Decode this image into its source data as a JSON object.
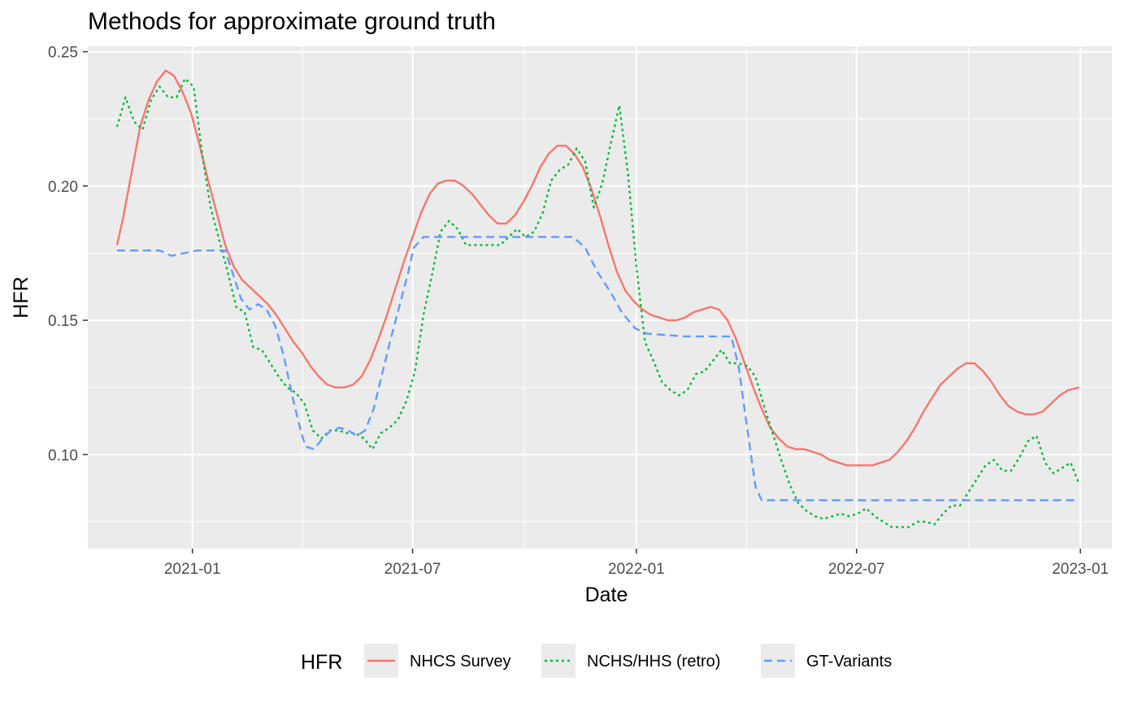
{
  "chart_data": {
    "type": "line",
    "title": "Methods for approximate ground truth",
    "xlabel": "Date",
    "ylabel": "HFR",
    "x_type": "date",
    "xlim": [
      "2020-10-07",
      "2023-01-27"
    ],
    "ylim": [
      0.065,
      0.252
    ],
    "x_ticks": [
      "2021-01-01",
      "2021-07-01",
      "2022-01-01",
      "2022-07-01",
      "2023-01-01"
    ],
    "x_tick_labels": [
      "2021-01",
      "2021-07",
      "2022-01",
      "2022-07",
      "2023-01"
    ],
    "y_ticks": [
      0.1,
      0.15,
      0.2,
      0.25
    ],
    "y_tick_labels": [
      "0.10",
      "0.15",
      "0.20",
      "0.25"
    ],
    "grid": true,
    "legend": {
      "title": "HFR",
      "position": "bottom"
    },
    "series": [
      {
        "name": "NHCS Survey",
        "color": "#F8766D",
        "dash": "solid",
        "points": [
          [
            "2020-10-31",
            0.178
          ],
          [
            "2020-11-05",
            0.188
          ],
          [
            "2020-11-12",
            0.205
          ],
          [
            "2020-11-19",
            0.222
          ],
          [
            "2020-11-26",
            0.232
          ],
          [
            "2020-12-03",
            0.239
          ],
          [
            "2020-12-10",
            0.243
          ],
          [
            "2020-12-17",
            0.241
          ],
          [
            "2020-12-24",
            0.235
          ],
          [
            "2020-12-31",
            0.227
          ],
          [
            "2021-01-07",
            0.215
          ],
          [
            "2021-01-14",
            0.202
          ],
          [
            "2021-01-21",
            0.19
          ],
          [
            "2021-01-28",
            0.178
          ],
          [
            "2021-02-04",
            0.17
          ],
          [
            "2021-02-11",
            0.165
          ],
          [
            "2021-02-18",
            0.162
          ],
          [
            "2021-02-25",
            0.159
          ],
          [
            "2021-03-04",
            0.156
          ],
          [
            "2021-03-11",
            0.152
          ],
          [
            "2021-03-18",
            0.147
          ],
          [
            "2021-03-25",
            0.142
          ],
          [
            "2021-04-01",
            0.138
          ],
          [
            "2021-04-08",
            0.133
          ],
          [
            "2021-04-15",
            0.129
          ],
          [
            "2021-04-22",
            0.126
          ],
          [
            "2021-04-29",
            0.125
          ],
          [
            "2021-05-06",
            0.125
          ],
          [
            "2021-05-13",
            0.126
          ],
          [
            "2021-05-20",
            0.129
          ],
          [
            "2021-05-27",
            0.135
          ],
          [
            "2021-06-03",
            0.143
          ],
          [
            "2021-06-10",
            0.152
          ],
          [
            "2021-06-17",
            0.162
          ],
          [
            "2021-06-24",
            0.172
          ],
          [
            "2021-07-01",
            0.181
          ],
          [
            "2021-07-08",
            0.19
          ],
          [
            "2021-07-15",
            0.197
          ],
          [
            "2021-07-22",
            0.201
          ],
          [
            "2021-07-29",
            0.202
          ],
          [
            "2021-08-05",
            0.202
          ],
          [
            "2021-08-12",
            0.2
          ],
          [
            "2021-08-19",
            0.197
          ],
          [
            "2021-08-26",
            0.193
          ],
          [
            "2021-09-02",
            0.189
          ],
          [
            "2021-09-09",
            0.186
          ],
          [
            "2021-09-16",
            0.186
          ],
          [
            "2021-09-23",
            0.189
          ],
          [
            "2021-09-30",
            0.194
          ],
          [
            "2021-10-07",
            0.2
          ],
          [
            "2021-10-14",
            0.207
          ],
          [
            "2021-10-21",
            0.212
          ],
          [
            "2021-10-28",
            0.215
          ],
          [
            "2021-11-04",
            0.215
          ],
          [
            "2021-11-11",
            0.212
          ],
          [
            "2021-11-18",
            0.207
          ],
          [
            "2021-11-25",
            0.199
          ],
          [
            "2021-12-02",
            0.189
          ],
          [
            "2021-12-09",
            0.178
          ],
          [
            "2021-12-16",
            0.168
          ],
          [
            "2021-12-23",
            0.161
          ],
          [
            "2021-12-30",
            0.157
          ],
          [
            "2022-01-06",
            0.154
          ],
          [
            "2022-01-13",
            0.152
          ],
          [
            "2022-01-20",
            0.151
          ],
          [
            "2022-01-27",
            0.15
          ],
          [
            "2022-02-03",
            0.15
          ],
          [
            "2022-02-10",
            0.151
          ],
          [
            "2022-02-17",
            0.153
          ],
          [
            "2022-02-24",
            0.154
          ],
          [
            "2022-03-03",
            0.155
          ],
          [
            "2022-03-10",
            0.154
          ],
          [
            "2022-03-17",
            0.15
          ],
          [
            "2022-03-24",
            0.143
          ],
          [
            "2022-03-31",
            0.134
          ],
          [
            "2022-04-07",
            0.125
          ],
          [
            "2022-04-14",
            0.117
          ],
          [
            "2022-04-21",
            0.11
          ],
          [
            "2022-04-28",
            0.106
          ],
          [
            "2022-05-05",
            0.103
          ],
          [
            "2022-05-12",
            0.102
          ],
          [
            "2022-05-19",
            0.102
          ],
          [
            "2022-05-26",
            0.101
          ],
          [
            "2022-06-02",
            0.1
          ],
          [
            "2022-06-09",
            0.098
          ],
          [
            "2022-06-16",
            0.097
          ],
          [
            "2022-06-23",
            0.096
          ],
          [
            "2022-06-30",
            0.096
          ],
          [
            "2022-07-07",
            0.096
          ],
          [
            "2022-07-14",
            0.096
          ],
          [
            "2022-07-21",
            0.097
          ],
          [
            "2022-07-28",
            0.098
          ],
          [
            "2022-08-04",
            0.101
          ],
          [
            "2022-08-11",
            0.105
          ],
          [
            "2022-08-18",
            0.11
          ],
          [
            "2022-08-25",
            0.116
          ],
          [
            "2022-09-01",
            0.121
          ],
          [
            "2022-09-08",
            0.126
          ],
          [
            "2022-09-15",
            0.129
          ],
          [
            "2022-09-22",
            0.132
          ],
          [
            "2022-09-29",
            0.134
          ],
          [
            "2022-10-06",
            0.134
          ],
          [
            "2022-10-13",
            0.131
          ],
          [
            "2022-10-20",
            0.127
          ],
          [
            "2022-10-27",
            0.122
          ],
          [
            "2022-11-03",
            0.118
          ],
          [
            "2022-11-10",
            0.116
          ],
          [
            "2022-11-17",
            0.115
          ],
          [
            "2022-11-24",
            0.115
          ],
          [
            "2022-12-01",
            0.116
          ],
          [
            "2022-12-08",
            0.119
          ],
          [
            "2022-12-15",
            0.122
          ],
          [
            "2022-12-22",
            0.124
          ],
          [
            "2022-12-31",
            0.125
          ]
        ]
      },
      {
        "name": "NCHS/HHS (retro)",
        "color": "#00BA38",
        "dash": "dotted",
        "points": [
          [
            "2020-10-31",
            0.222
          ],
          [
            "2020-11-07",
            0.233
          ],
          [
            "2020-11-14",
            0.224
          ],
          [
            "2020-11-21",
            0.221
          ],
          [
            "2020-11-28",
            0.232
          ],
          [
            "2020-12-05",
            0.237
          ],
          [
            "2020-12-12",
            0.233
          ],
          [
            "2020-12-19",
            0.233
          ],
          [
            "2020-12-26",
            0.24
          ],
          [
            "2021-01-02",
            0.237
          ],
          [
            "2021-01-09",
            0.212
          ],
          [
            "2021-01-16",
            0.192
          ],
          [
            "2021-01-23",
            0.18
          ],
          [
            "2021-01-30",
            0.168
          ],
          [
            "2021-02-06",
            0.155
          ],
          [
            "2021-02-13",
            0.153
          ],
          [
            "2021-02-20",
            0.14
          ],
          [
            "2021-02-27",
            0.139
          ],
          [
            "2021-03-06",
            0.134
          ],
          [
            "2021-03-13",
            0.129
          ],
          [
            "2021-03-20",
            0.125
          ],
          [
            "2021-03-27",
            0.123
          ],
          [
            "2021-04-03",
            0.119
          ],
          [
            "2021-04-10",
            0.109
          ],
          [
            "2021-04-17",
            0.106
          ],
          [
            "2021-04-24",
            0.109
          ],
          [
            "2021-05-01",
            0.109
          ],
          [
            "2021-05-08",
            0.108
          ],
          [
            "2021-05-15",
            0.108
          ],
          [
            "2021-05-22",
            0.106
          ],
          [
            "2021-05-29",
            0.102
          ],
          [
            "2021-06-05",
            0.108
          ],
          [
            "2021-06-12",
            0.11
          ],
          [
            "2021-06-19",
            0.113
          ],
          [
            "2021-06-26",
            0.12
          ],
          [
            "2021-07-03",
            0.131
          ],
          [
            "2021-07-10",
            0.152
          ],
          [
            "2021-07-17",
            0.167
          ],
          [
            "2021-07-24",
            0.183
          ],
          [
            "2021-07-31",
            0.187
          ],
          [
            "2021-08-07",
            0.184
          ],
          [
            "2021-08-14",
            0.178
          ],
          [
            "2021-08-21",
            0.178
          ],
          [
            "2021-08-28",
            0.178
          ],
          [
            "2021-09-04",
            0.178
          ],
          [
            "2021-09-11",
            0.178
          ],
          [
            "2021-09-18",
            0.181
          ],
          [
            "2021-09-25",
            0.184
          ],
          [
            "2021-10-02",
            0.181
          ],
          [
            "2021-10-09",
            0.183
          ],
          [
            "2021-10-16",
            0.19
          ],
          [
            "2021-10-23",
            0.202
          ],
          [
            "2021-10-30",
            0.206
          ],
          [
            "2021-11-06",
            0.208
          ],
          [
            "2021-11-13",
            0.214
          ],
          [
            "2021-11-20",
            0.209
          ],
          [
            "2021-11-27",
            0.192
          ],
          [
            "2021-12-04",
            0.201
          ],
          [
            "2021-12-11",
            0.216
          ],
          [
            "2021-12-18",
            0.23
          ],
          [
            "2021-12-25",
            0.205
          ],
          [
            "2022-01-01",
            0.17
          ],
          [
            "2022-01-08",
            0.142
          ],
          [
            "2022-01-15",
            0.135
          ],
          [
            "2022-01-22",
            0.127
          ],
          [
            "2022-01-29",
            0.124
          ],
          [
            "2022-02-05",
            0.122
          ],
          [
            "2022-02-12",
            0.124
          ],
          [
            "2022-02-19",
            0.13
          ],
          [
            "2022-02-26",
            0.131
          ],
          [
            "2022-03-05",
            0.135
          ],
          [
            "2022-03-12",
            0.139
          ],
          [
            "2022-03-19",
            0.134
          ],
          [
            "2022-03-26",
            0.134
          ],
          [
            "2022-04-02",
            0.133
          ],
          [
            "2022-04-09",
            0.129
          ],
          [
            "2022-04-16",
            0.118
          ],
          [
            "2022-04-23",
            0.108
          ],
          [
            "2022-04-30",
            0.098
          ],
          [
            "2022-05-07",
            0.089
          ],
          [
            "2022-05-14",
            0.082
          ],
          [
            "2022-05-21",
            0.079
          ],
          [
            "2022-05-28",
            0.077
          ],
          [
            "2022-06-04",
            0.076
          ],
          [
            "2022-06-11",
            0.077
          ],
          [
            "2022-06-18",
            0.078
          ],
          [
            "2022-06-25",
            0.077
          ],
          [
            "2022-07-02",
            0.078
          ],
          [
            "2022-07-09",
            0.08
          ],
          [
            "2022-07-16",
            0.077
          ],
          [
            "2022-07-23",
            0.075
          ],
          [
            "2022-07-30",
            0.073
          ],
          [
            "2022-08-06",
            0.073
          ],
          [
            "2022-08-13",
            0.073
          ],
          [
            "2022-08-20",
            0.075
          ],
          [
            "2022-08-27",
            0.075
          ],
          [
            "2022-09-03",
            0.074
          ],
          [
            "2022-09-10",
            0.078
          ],
          [
            "2022-09-17",
            0.081
          ],
          [
            "2022-09-24",
            0.081
          ],
          [
            "2022-10-01",
            0.086
          ],
          [
            "2022-10-08",
            0.091
          ],
          [
            "2022-10-15",
            0.096
          ],
          [
            "2022-10-22",
            0.098
          ],
          [
            "2022-10-29",
            0.094
          ],
          [
            "2022-11-05",
            0.094
          ],
          [
            "2022-11-12",
            0.099
          ],
          [
            "2022-11-19",
            0.105
          ],
          [
            "2022-11-26",
            0.107
          ],
          [
            "2022-12-03",
            0.097
          ],
          [
            "2022-12-10",
            0.093
          ],
          [
            "2022-12-17",
            0.095
          ],
          [
            "2022-12-24",
            0.097
          ],
          [
            "2022-12-31",
            0.089
          ]
        ]
      },
      {
        "name": "GT-Variants",
        "color": "#619CFF",
        "dash": "dashed",
        "points": [
          [
            "2020-10-31",
            0.176
          ],
          [
            "2020-12-05",
            0.176
          ],
          [
            "2020-12-15",
            0.174
          ],
          [
            "2020-12-25",
            0.175
          ],
          [
            "2021-01-05",
            0.176
          ],
          [
            "2021-01-28",
            0.176
          ],
          [
            "2021-02-10",
            0.158
          ],
          [
            "2021-02-17",
            0.154
          ],
          [
            "2021-02-24",
            0.156
          ],
          [
            "2021-03-03",
            0.154
          ],
          [
            "2021-03-10",
            0.148
          ],
          [
            "2021-03-17",
            0.137
          ],
          [
            "2021-03-24",
            0.122
          ],
          [
            "2021-03-31",
            0.109
          ],
          [
            "2021-04-04",
            0.103
          ],
          [
            "2021-04-11",
            0.102
          ],
          [
            "2021-04-18",
            0.106
          ],
          [
            "2021-04-25",
            0.109
          ],
          [
            "2021-05-02",
            0.11
          ],
          [
            "2021-05-09",
            0.109
          ],
          [
            "2021-05-16",
            0.107
          ],
          [
            "2021-05-23",
            0.109
          ],
          [
            "2021-05-30",
            0.117
          ],
          [
            "2021-06-06",
            0.13
          ],
          [
            "2021-06-13",
            0.143
          ],
          [
            "2021-06-20",
            0.155
          ],
          [
            "2021-06-27",
            0.167
          ],
          [
            "2021-07-02",
            0.177
          ],
          [
            "2021-07-10",
            0.181
          ],
          [
            "2021-08-15",
            0.181
          ],
          [
            "2021-09-15",
            0.181
          ],
          [
            "2021-11-10",
            0.181
          ],
          [
            "2021-11-20",
            0.177
          ],
          [
            "2021-11-30",
            0.168
          ],
          [
            "2021-12-10",
            0.161
          ],
          [
            "2021-12-20",
            0.153
          ],
          [
            "2021-12-31",
            0.147
          ],
          [
            "2022-01-10",
            0.145
          ],
          [
            "2022-02-10",
            0.144
          ],
          [
            "2022-03-20",
            0.144
          ],
          [
            "2022-03-26",
            0.133
          ],
          [
            "2022-04-02",
            0.11
          ],
          [
            "2022-04-09",
            0.088
          ],
          [
            "2022-04-14",
            0.083
          ],
          [
            "2022-12-31",
            0.083
          ]
        ]
      }
    ]
  }
}
